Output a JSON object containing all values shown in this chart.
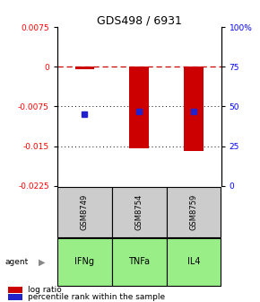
{
  "title": "GDS498 / 6931",
  "samples": [
    "GSM8749",
    "GSM8754",
    "GSM8759"
  ],
  "agents": [
    "IFNg",
    "TNFa",
    "IL4"
  ],
  "log_ratios": [
    -0.0005,
    -0.0155,
    -0.016
  ],
  "percentile_ranks_pct": [
    45,
    47,
    47
  ],
  "ymin": -0.0225,
  "ymax": 0.0075,
  "left_yticks": [
    0.0075,
    0,
    -0.0075,
    -0.015,
    -0.0225
  ],
  "right_yticks": [
    100,
    75,
    50,
    25,
    0
  ],
  "right_tick_labels": [
    "100%",
    "75",
    "50",
    "25",
    "0"
  ],
  "bar_color": "#cc0000",
  "dot_color": "#2222cc",
  "sample_box_color": "#cccccc",
  "agent_box_color": "#99ee88",
  "bar_width": 0.35
}
